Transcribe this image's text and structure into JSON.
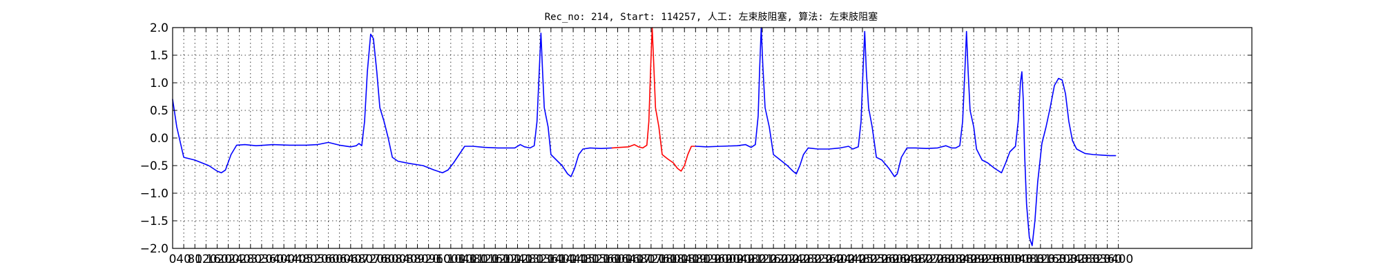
{
  "chart_data": {
    "type": "line",
    "title": "Rec_no: 214, Start: 114257, 人工: 左束肢阻塞, 算法: 左束肢阻塞",
    "xlabel": "",
    "ylabel": "",
    "xlim": [
      0,
      3880
    ],
    "ylim": [
      -2.0,
      2.0
    ],
    "grid": true,
    "x_ticks": [
      0,
      40,
      80,
      120,
      160,
      200,
      240,
      280,
      320,
      360,
      400,
      440,
      480,
      520,
      560,
      600,
      640,
      680,
      720,
      760,
      800,
      840,
      880,
      920,
      960,
      1000,
      1040,
      1080,
      1120,
      1160,
      1200,
      1240,
      1280,
      1320,
      1360,
      1400,
      1440,
      1480,
      1520,
      1560,
      1600,
      1640,
      1680,
      1720,
      1760,
      1800,
      1840,
      1880,
      1920,
      1960,
      2000,
      2040,
      2080,
      2120,
      2160,
      2200,
      2240,
      2280,
      2320,
      2360,
      2400,
      2440,
      2480,
      2520,
      2560,
      2600,
      2640,
      2680,
      2720,
      2760,
      2800,
      2840,
      2880,
      2920,
      2960,
      3000,
      3040,
      3080,
      3120,
      3160,
      3200,
      3240,
      3280,
      3320,
      3360,
      3400
    ],
    "y_ticks": [
      -2.0,
      -1.5,
      -1.0,
      -0.5,
      0.0,
      0.5,
      1.0,
      1.5,
      2.0
    ],
    "y_tick_labels": [
      "−2.0",
      "−1.5",
      "−1.0",
      "−0.5",
      "0.0",
      "0.5",
      "1.0",
      "1.5",
      "2.0"
    ],
    "colors": {
      "normal": "#0000ff",
      "highlight": "#ff0000"
    },
    "series": [
      {
        "color": "#0000ff",
        "points": [
          [
            0,
            0.7
          ],
          [
            15,
            0.2
          ],
          [
            40,
            -0.35
          ],
          [
            80,
            -0.4
          ],
          [
            130,
            -0.5
          ],
          [
            160,
            -0.6
          ],
          [
            175,
            -0.63
          ],
          [
            190,
            -0.58
          ],
          [
            210,
            -0.3
          ],
          [
            230,
            -0.13
          ],
          [
            260,
            -0.12
          ],
          [
            300,
            -0.14
          ],
          [
            360,
            -0.12
          ],
          [
            420,
            -0.13
          ],
          [
            480,
            -0.13
          ],
          [
            520,
            -0.12
          ],
          [
            560,
            -0.08
          ],
          [
            600,
            -0.13
          ],
          [
            640,
            -0.16
          ],
          [
            660,
            -0.14
          ],
          [
            670,
            -0.1
          ],
          [
            680,
            -0.14
          ],
          [
            690,
            0.3
          ],
          [
            700,
            1.2
          ],
          [
            712,
            1.88
          ],
          [
            722,
            1.8
          ],
          [
            734,
            1.2
          ],
          [
            745,
            0.55
          ],
          [
            760,
            0.3
          ],
          [
            775,
            0.0
          ],
          [
            790,
            -0.35
          ],
          [
            810,
            -0.42
          ],
          [
            850,
            -0.46
          ],
          [
            900,
            -0.5
          ],
          [
            940,
            -0.58
          ],
          [
            970,
            -0.63
          ],
          [
            990,
            -0.58
          ],
          [
            1010,
            -0.45
          ],
          [
            1030,
            -0.3
          ],
          [
            1050,
            -0.15
          ],
          [
            1080,
            -0.15
          ],
          [
            1120,
            -0.17
          ],
          [
            1170,
            -0.18
          ],
          [
            1200,
            -0.18
          ],
          [
            1230,
            -0.18
          ],
          [
            1250,
            -0.12
          ],
          [
            1265,
            -0.16
          ],
          [
            1285,
            -0.18
          ],
          [
            1300,
            -0.14
          ],
          [
            1310,
            0.3
          ],
          [
            1318,
            1.2
          ],
          [
            1324,
            1.9
          ],
          [
            1330,
            1.2
          ],
          [
            1336,
            0.55
          ],
          [
            1350,
            0.2
          ],
          [
            1360,
            -0.3
          ],
          [
            1380,
            -0.4
          ],
          [
            1400,
            -0.5
          ],
          [
            1420,
            -0.65
          ],
          [
            1432,
            -0.7
          ],
          [
            1445,
            -0.55
          ],
          [
            1460,
            -0.3
          ],
          [
            1475,
            -0.2
          ],
          [
            1500,
            -0.18
          ],
          [
            1540,
            -0.19
          ],
          [
            1580,
            -0.18
          ]
        ]
      },
      {
        "color": "#ff0000",
        "points": [
          [
            1580,
            -0.18
          ],
          [
            1610,
            -0.17
          ],
          [
            1640,
            -0.16
          ],
          [
            1660,
            -0.12
          ],
          [
            1675,
            -0.16
          ],
          [
            1690,
            -0.18
          ],
          [
            1705,
            -0.13
          ],
          [
            1712,
            0.3
          ],
          [
            1718,
            1.2
          ],
          [
            1724,
            2.0
          ],
          [
            1730,
            1.3
          ],
          [
            1736,
            0.55
          ],
          [
            1748,
            0.2
          ],
          [
            1760,
            -0.3
          ],
          [
            1780,
            -0.38
          ],
          [
            1800,
            -0.45
          ],
          [
            1815,
            -0.55
          ],
          [
            1828,
            -0.6
          ],
          [
            1840,
            -0.5
          ],
          [
            1852,
            -0.3
          ],
          [
            1865,
            -0.15
          ],
          [
            1880,
            -0.15
          ]
        ]
      },
      {
        "color": "#0000ff",
        "points": [
          [
            1880,
            -0.15
          ],
          [
            1920,
            -0.16
          ],
          [
            1970,
            -0.15
          ],
          [
            2030,
            -0.14
          ],
          [
            2060,
            -0.12
          ],
          [
            2080,
            -0.17
          ],
          [
            2095,
            -0.12
          ],
          [
            2105,
            0.4
          ],
          [
            2110,
            1.2
          ],
          [
            2116,
            2.0
          ],
          [
            2122,
            1.3
          ],
          [
            2130,
            0.55
          ],
          [
            2145,
            0.2
          ],
          [
            2160,
            -0.3
          ],
          [
            2180,
            -0.38
          ],
          [
            2210,
            -0.5
          ],
          [
            2230,
            -0.6
          ],
          [
            2242,
            -0.65
          ],
          [
            2255,
            -0.5
          ],
          [
            2268,
            -0.3
          ],
          [
            2285,
            -0.18
          ],
          [
            2320,
            -0.2
          ],
          [
            2360,
            -0.2
          ],
          [
            2400,
            -0.18
          ],
          [
            2430,
            -0.15
          ],
          [
            2445,
            -0.2
          ],
          [
            2465,
            -0.16
          ],
          [
            2475,
            0.3
          ],
          [
            2482,
            1.2
          ],
          [
            2488,
            1.93
          ],
          [
            2494,
            1.2
          ],
          [
            2502,
            0.55
          ],
          [
            2515,
            0.2
          ],
          [
            2530,
            -0.35
          ],
          [
            2550,
            -0.4
          ],
          [
            2575,
            -0.55
          ],
          [
            2595,
            -0.7
          ],
          [
            2605,
            -0.65
          ],
          [
            2620,
            -0.35
          ],
          [
            2640,
            -0.18
          ],
          [
            2670,
            -0.18
          ],
          [
            2710,
            -0.19
          ],
          [
            2750,
            -0.18
          ],
          [
            2780,
            -0.14
          ],
          [
            2800,
            -0.18
          ],
          [
            2815,
            -0.18
          ],
          [
            2830,
            -0.14
          ],
          [
            2840,
            0.3
          ],
          [
            2848,
            1.2
          ],
          [
            2854,
            1.93
          ],
          [
            2860,
            1.2
          ],
          [
            2867,
            0.5
          ],
          [
            2880,
            0.2
          ],
          [
            2890,
            -0.2
          ],
          [
            2910,
            -0.4
          ],
          [
            2930,
            -0.45
          ],
          [
            2955,
            -0.55
          ],
          [
            2980,
            -0.63
          ],
          [
            2995,
            -0.45
          ],
          [
            3010,
            -0.25
          ],
          [
            3030,
            -0.15
          ],
          [
            3040,
            0.3
          ],
          [
            3048,
            1.0
          ],
          [
            3053,
            1.2
          ],
          [
            3058,
            0.7
          ],
          [
            3063,
            -0.3
          ],
          [
            3070,
            -1.2
          ],
          [
            3080,
            -1.8
          ],
          [
            3090,
            -1.95
          ],
          [
            3100,
            -1.5
          ],
          [
            3110,
            -0.8
          ],
          [
            3125,
            -0.1
          ],
          [
            3140,
            0.2
          ],
          [
            3155,
            0.55
          ],
          [
            3170,
            0.95
          ],
          [
            3185,
            1.08
          ],
          [
            3198,
            1.05
          ],
          [
            3210,
            0.8
          ],
          [
            3222,
            0.3
          ],
          [
            3235,
            -0.05
          ],
          [
            3250,
            -0.2
          ],
          [
            3280,
            -0.28
          ],
          [
            3310,
            -0.3
          ],
          [
            3340,
            -0.31
          ],
          [
            3370,
            -0.32
          ],
          [
            3390,
            -0.32
          ]
        ]
      }
    ]
  }
}
